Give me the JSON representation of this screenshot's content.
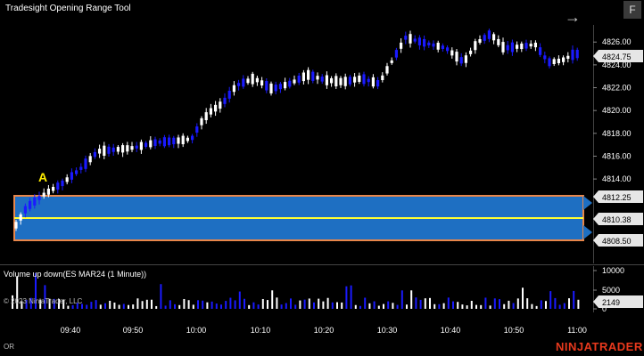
{
  "window": {
    "title": "Tradesight Opening Range Tool",
    "f_button": "F",
    "arrow_icon": "arrow-right-icon"
  },
  "price_axis": {
    "ticks": [
      "4826.00",
      "4824.00",
      "4822.00",
      "4820.00",
      "4818.00",
      "4816.00",
      "4814.00"
    ],
    "price_ticks_values": [
      4826,
      4824,
      4822,
      4820,
      4818,
      4816,
      4814
    ],
    "current_price": "4824.75",
    "range_high": "4812.25",
    "range_mid": "4810.38",
    "range_low": "4808.50",
    "ymin": 4806.6,
    "ymax": 4827.5
  },
  "annotation": {
    "label": "A"
  },
  "volume": {
    "title": "Volume up down(ES MAR24 (1 Minute))",
    "ticks": [
      "10000",
      "5000",
      "0"
    ],
    "current": "2149"
  },
  "copyright": "© 2023 NinjaTrader, LLC",
  "time_axis": [
    "09:40",
    "09:50",
    "10:00",
    "10:10",
    "10:20",
    "10:30",
    "10:40",
    "10:50",
    "11:00"
  ],
  "status_label": "OR",
  "logo": "NINJATRADER",
  "colors": {
    "up": "#ffffff",
    "down": "#1010ff",
    "range_fill": "#1e6fc2",
    "range_border": "#e8864a",
    "mid_line": "#ffff33",
    "logo": "#e8391d"
  }
}
